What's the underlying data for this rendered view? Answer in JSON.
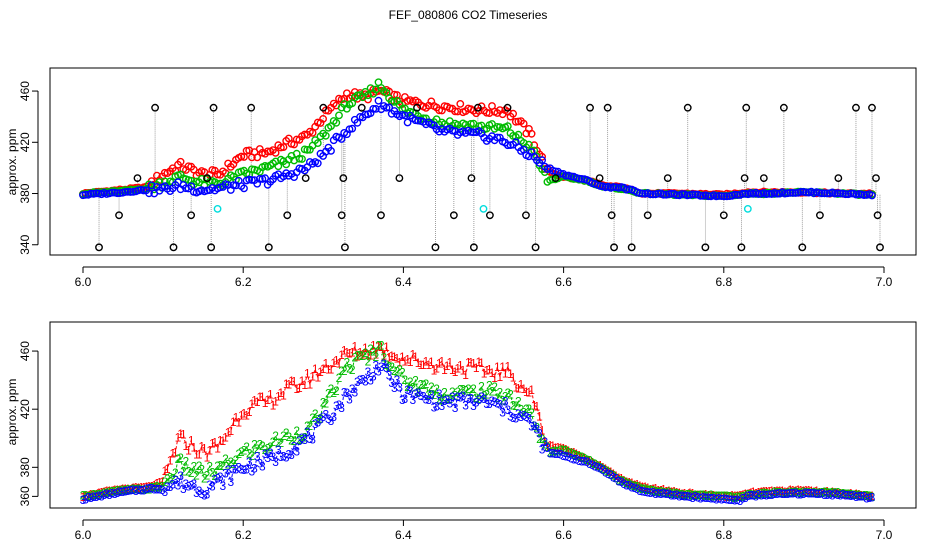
{
  "title": "FEF_080806  CO2 Timeseries",
  "colors": {
    "s1": "#ff0000",
    "s2": "#00bb00",
    "s3": "#0000ff",
    "flag": "#000000",
    "cyan": "#00dddd",
    "drop": "#888888"
  },
  "chart_data": [
    {
      "type": "scatter",
      "title": "",
      "xlabel": "",
      "ylabel": "approx. ppm",
      "xlim": [
        5.99,
        7.0
      ],
      "ylim": [
        332,
        478
      ],
      "x_ticks": [
        "6.0",
        "6.2",
        "6.4",
        "6.6",
        "6.8",
        "7.0"
      ],
      "y_ticks": [
        "340",
        "380",
        "420",
        "460"
      ],
      "series_profile": {
        "x": [
          6.0,
          6.05,
          6.08,
          6.1,
          6.12,
          6.15,
          6.17,
          6.2,
          6.23,
          6.25,
          6.28,
          6.3,
          6.33,
          6.35,
          6.37,
          6.4,
          6.45,
          6.5,
          6.53,
          6.56,
          6.58,
          6.6,
          6.63,
          6.65,
          6.67,
          6.7,
          6.75,
          6.8,
          6.83,
          6.85,
          6.9,
          6.95,
          6.98
        ],
        "blue": [
          379,
          381,
          383,
          383,
          386,
          383,
          384,
          387,
          390,
          393,
          400,
          410,
          430,
          440,
          450,
          440,
          428,
          425,
          420,
          410,
          400,
          395,
          390,
          385,
          385,
          380,
          379,
          378,
          380,
          380,
          381,
          380,
          379
        ],
        "red": [
          380,
          383,
          385,
          395,
          402,
          395,
          395,
          410,
          412,
          418,
          425,
          440,
          458,
          455,
          460,
          452,
          448,
          445,
          445,
          425,
          397,
          393,
          390,
          386,
          385,
          380,
          380,
          379,
          381,
          381,
          381,
          380,
          380
        ],
        "green": [
          380,
          382,
          384,
          388,
          393,
          388,
          388,
          395,
          400,
          404,
          412,
          425,
          450,
          455,
          465,
          445,
          435,
          432,
          430,
          415,
          390,
          393,
          390,
          385,
          384,
          380,
          379,
          378,
          380,
          380,
          381,
          380,
          379
        ]
      },
      "flagged_points": [
        {
          "x": 6.02,
          "y": 338
        },
        {
          "x": 6.045,
          "y": 363
        },
        {
          "x": 6.068,
          "y": 392
        },
        {
          "x": 6.09,
          "y": 447
        },
        {
          "x": 6.113,
          "y": 338
        },
        {
          "x": 6.135,
          "y": 363
        },
        {
          "x": 6.155,
          "y": 392
        },
        {
          "x": 6.16,
          "y": 338
        },
        {
          "x": 6.163,
          "y": 447
        },
        {
          "x": 6.21,
          "y": 447
        },
        {
          "x": 6.232,
          "y": 338
        },
        {
          "x": 6.255,
          "y": 363
        },
        {
          "x": 6.278,
          "y": 392
        },
        {
          "x": 6.3,
          "y": 447
        },
        {
          "x": 6.323,
          "y": 363
        },
        {
          "x": 6.325,
          "y": 392
        },
        {
          "x": 6.327,
          "y": 338
        },
        {
          "x": 6.348,
          "y": 447
        },
        {
          "x": 6.372,
          "y": 363
        },
        {
          "x": 6.395,
          "y": 392
        },
        {
          "x": 6.417,
          "y": 447
        },
        {
          "x": 6.44,
          "y": 338
        },
        {
          "x": 6.463,
          "y": 363
        },
        {
          "x": 6.485,
          "y": 392
        },
        {
          "x": 6.488,
          "y": 338
        },
        {
          "x": 6.493,
          "y": 447
        },
        {
          "x": 6.508,
          "y": 363
        },
        {
          "x": 6.53,
          "y": 447
        },
        {
          "x": 6.553,
          "y": 363
        },
        {
          "x": 6.565,
          "y": 338
        },
        {
          "x": 6.59,
          "y": 392
        },
        {
          "x": 6.633,
          "y": 447
        },
        {
          "x": 6.645,
          "y": 392
        },
        {
          "x": 6.655,
          "y": 447
        },
        {
          "x": 6.66,
          "y": 363
        },
        {
          "x": 6.663,
          "y": 338
        },
        {
          "x": 6.685,
          "y": 338
        },
        {
          "x": 6.705,
          "y": 363
        },
        {
          "x": 6.73,
          "y": 392
        },
        {
          "x": 6.755,
          "y": 447
        },
        {
          "x": 6.777,
          "y": 338
        },
        {
          "x": 6.8,
          "y": 363
        },
        {
          "x": 6.822,
          "y": 338
        },
        {
          "x": 6.826,
          "y": 392
        },
        {
          "x": 6.828,
          "y": 447
        },
        {
          "x": 6.85,
          "y": 392
        },
        {
          "x": 6.875,
          "y": 447
        },
        {
          "x": 6.898,
          "y": 338
        },
        {
          "x": 6.92,
          "y": 363
        },
        {
          "x": 6.943,
          "y": 392
        },
        {
          "x": 6.965,
          "y": 447
        },
        {
          "x": 6.985,
          "y": 447
        },
        {
          "x": 6.99,
          "y": 392
        },
        {
          "x": 6.992,
          "y": 363
        },
        {
          "x": 6.995,
          "y": 338
        }
      ],
      "cyan_points": [
        {
          "x": 6.168,
          "y": 368
        },
        {
          "x": 6.5,
          "y": 368
        },
        {
          "x": 6.83,
          "y": 368
        }
      ],
      "legend": "none"
    },
    {
      "type": "scatter",
      "title": "",
      "xlabel": "",
      "ylabel": "approx. ppm",
      "xlim": [
        5.99,
        7.0
      ],
      "ylim": [
        352,
        480
      ],
      "x_ticks": [
        "6.0",
        "6.2",
        "6.4",
        "6.6",
        "6.8",
        "7.0"
      ],
      "y_ticks": [
        "360",
        "380",
        "420",
        "460"
      ],
      "series_labels": [
        "1",
        "2",
        "3"
      ],
      "series_profile": {
        "x": [
          6.0,
          6.05,
          6.08,
          6.1,
          6.12,
          6.15,
          6.17,
          6.2,
          6.23,
          6.25,
          6.28,
          6.3,
          6.33,
          6.35,
          6.37,
          6.4,
          6.45,
          6.5,
          6.53,
          6.56,
          6.58,
          6.6,
          6.63,
          6.65,
          6.67,
          6.7,
          6.75,
          6.8,
          6.82,
          6.83,
          6.85,
          6.9,
          6.95,
          6.98
        ],
        "red": [
          360,
          365,
          366,
          370,
          400,
          390,
          395,
          420,
          425,
          432,
          440,
          448,
          458,
          460,
          462,
          455,
          450,
          447,
          445,
          430,
          395,
          393,
          385,
          380,
          372,
          366,
          362,
          360,
          360,
          362,
          363,
          364,
          362,
          360
        ],
        "green": [
          360,
          364,
          365,
          367,
          382,
          375,
          378,
          390,
          395,
          400,
          405,
          420,
          450,
          455,
          462,
          440,
          430,
          432,
          430,
          415,
          390,
          392,
          385,
          379,
          371,
          365,
          361,
          360,
          359,
          361,
          362,
          363,
          362,
          360
        ],
        "blue": [
          358,
          363,
          365,
          365,
          370,
          365,
          370,
          380,
          385,
          390,
          400,
          410,
          430,
          440,
          450,
          430,
          425,
          425,
          420,
          410,
          390,
          388,
          383,
          378,
          370,
          363,
          360,
          358,
          357,
          360,
          361,
          362,
          361,
          359
        ]
      },
      "legend": "none"
    }
  ]
}
